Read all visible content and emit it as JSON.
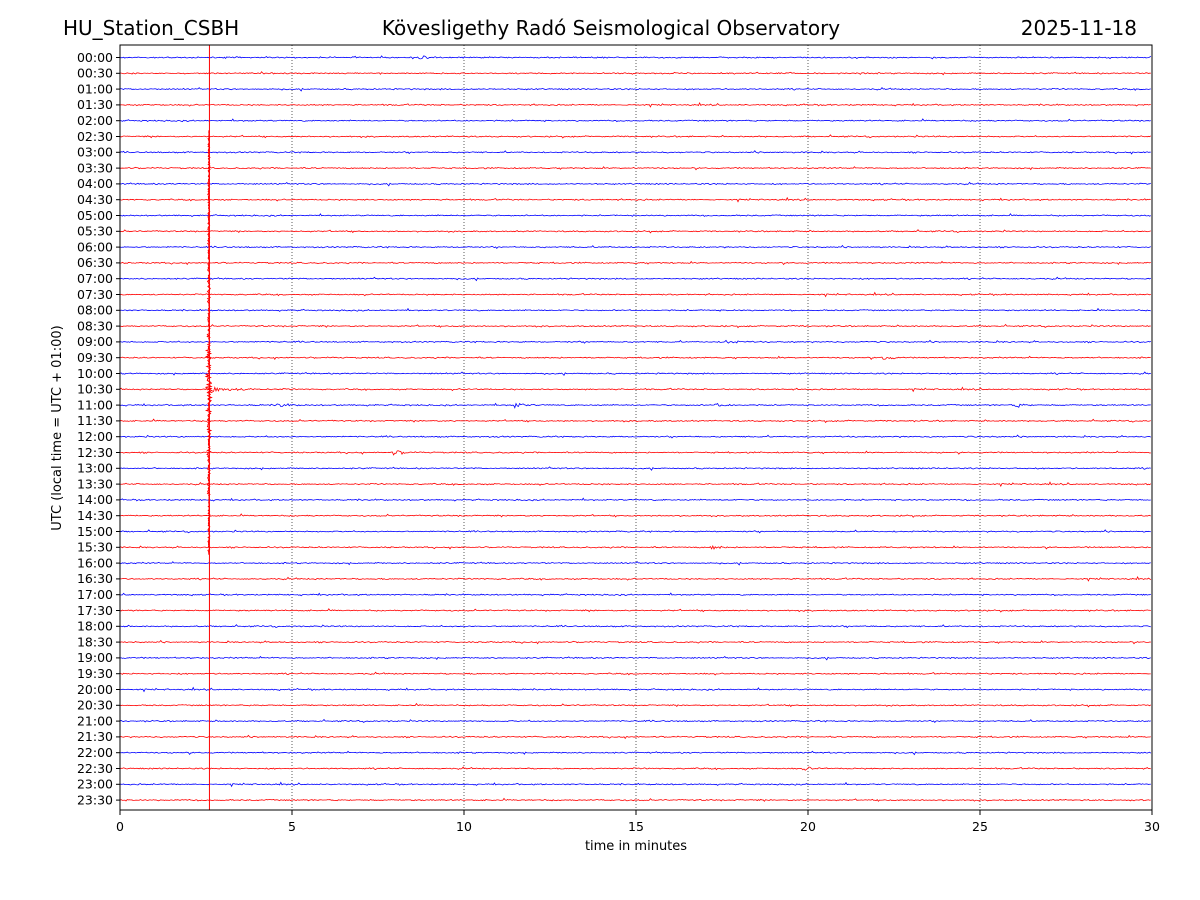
{
  "header": {
    "station": "HU_Station_CSBH",
    "observatory": "Kövesligethy Radó Seismological Observatory",
    "date": "2025-11-18"
  },
  "chart_data": {
    "type": "line",
    "subtype": "helicorder",
    "title": "Kövesligethy Radó Seismological Observatory",
    "xlabel": "time in minutes",
    "ylabel": "UTC (local time = UTC + 01:00)",
    "xlim": [
      0,
      30
    ],
    "x_ticks": [
      "0",
      "5",
      "10",
      "15",
      "20",
      "25",
      "30"
    ],
    "x_tick_values": [
      0,
      5,
      10,
      15,
      20,
      25,
      30
    ],
    "grid": "vertical dotted at 5-minute ticks",
    "trace_colors": [
      "#0000ff",
      "#ff0000"
    ],
    "rows": [
      "00:00",
      "00:30",
      "01:00",
      "01:30",
      "02:00",
      "02:30",
      "03:00",
      "03:30",
      "04:00",
      "04:30",
      "05:00",
      "05:30",
      "06:00",
      "06:30",
      "07:00",
      "07:30",
      "08:00",
      "08:30",
      "09:00",
      "09:30",
      "10:00",
      "10:30",
      "11:00",
      "11:30",
      "12:00",
      "12:30",
      "13:00",
      "13:30",
      "14:00",
      "14:30",
      "15:00",
      "15:30",
      "16:00",
      "16:30",
      "17:00",
      "17:30",
      "18:00",
      "18:30",
      "19:00",
      "19:30",
      "20:00",
      "20:30",
      "21:00",
      "21:30",
      "22:00",
      "22:30",
      "23:00",
      "23:30"
    ],
    "events": [
      {
        "name": "main-event",
        "row_start": 5,
        "row_end": 31,
        "minute": 2.6,
        "peak_row": 21,
        "color": "#ff0000"
      },
      {
        "name": "coda",
        "row": 21,
        "minute_start": 2.6,
        "minute_end": 4.0
      },
      {
        "name": "arrival-1",
        "row": 22,
        "minute": 4.6
      },
      {
        "name": "arrival-2",
        "row": 22,
        "minute": 11.5
      },
      {
        "name": "arrival-3",
        "row": 22,
        "minute": 17.3
      },
      {
        "name": "arrival-4",
        "row": 22,
        "minute": 26.0
      },
      {
        "name": "arrival-5",
        "row": 25,
        "minute": 8.0
      },
      {
        "name": "arrival-6",
        "row": 31,
        "minute": 17.2
      },
      {
        "name": "arrival-7",
        "row": 19,
        "minute": 22.2
      },
      {
        "name": "arrival-8",
        "row": 45,
        "minute": 19.9
      },
      {
        "name": "arrival-9",
        "row": 0,
        "minute": 8.7
      },
      {
        "name": "arrival-10",
        "row": 18,
        "minute": 17.6
      }
    ]
  }
}
